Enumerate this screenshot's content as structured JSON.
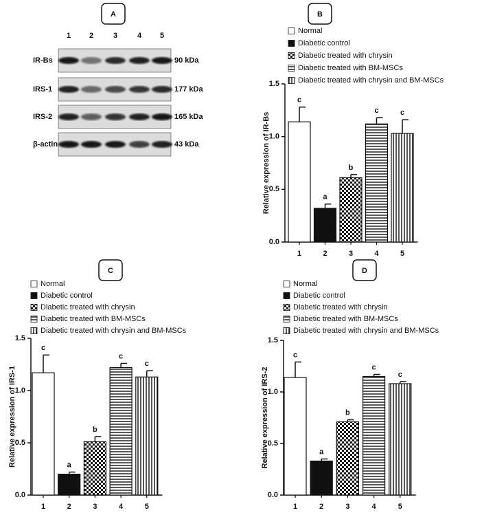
{
  "blot": {
    "panel": "A",
    "lanes": [
      "1",
      "2",
      "3",
      "4",
      "5"
    ],
    "rows": [
      {
        "name": "IR-Bs",
        "kda": "90 kDa"
      },
      {
        "name": "IRS-1",
        "kda": "177 kDa"
      },
      {
        "name": "IRS-2",
        "kda": "165 kDa"
      },
      {
        "name": "β-actin",
        "kda": "43 kDa"
      }
    ]
  },
  "chart_data": [
    {
      "type": "bar",
      "panel": "B",
      "y_label": "Relative expression of IR-Bs",
      "categories": [
        "1",
        "2",
        "3",
        "4",
        "5"
      ],
      "values": [
        1.14,
        0.32,
        0.61,
        1.12,
        1.03
      ],
      "errors": [
        0.14,
        0.04,
        0.03,
        0.06,
        0.13
      ],
      "annotations": [
        "c",
        "a",
        "b",
        "c",
        "c"
      ],
      "legend": [
        "Normal",
        "Diabetic control",
        "Diabetic treated with chrysin",
        "Diabetic treated with BM-MSCs",
        "Diabetic treated with chrysin and BM-MSCs"
      ],
      "patterns": [
        "white",
        "black",
        "checker",
        "hlines",
        "vlines"
      ],
      "ylim": [
        0,
        1.5
      ],
      "yticks": [
        {
          "value": 0,
          "label": "0.0"
        },
        0.5,
        {
          "value": 1,
          "label": "1.0"
        },
        1.5
      ]
    },
    {
      "type": "bar",
      "panel": "C",
      "y_label": "Relative expression of IRS-1",
      "categories": [
        "1",
        "2",
        "3",
        "4",
        "5"
      ],
      "values": [
        1.17,
        0.2,
        0.51,
        1.22,
        1.13
      ],
      "errors": [
        0.17,
        0.02,
        0.05,
        0.04,
        0.06
      ],
      "annotations": [
        "c",
        "a",
        "b",
        "c",
        "c"
      ],
      "legend": [
        "Normal",
        "Diabetic control",
        "Diabetic treated with chrysin",
        "Diabetic treated with BM-MSCs",
        "Diabetic treated with chrysin and BM-MSCs"
      ],
      "patterns": [
        "white",
        "black",
        "checker",
        "hlines",
        "vlines"
      ],
      "ylim": [
        0,
        1.5
      ],
      "yticks": [
        {
          "value": 0,
          "label": "0.0"
        },
        0.5,
        {
          "value": 1,
          "label": "1.0"
        },
        1.5
      ]
    },
    {
      "type": "bar",
      "panel": "D",
      "y_label": "Relative expression of IRS-2",
      "categories": [
        "1",
        "2",
        "3",
        "4",
        "5"
      ],
      "values": [
        1.14,
        0.33,
        0.71,
        1.15,
        1.08
      ],
      "errors": [
        0.15,
        0.02,
        0.02,
        0.02,
        0.02
      ],
      "annotations": [
        "c",
        "a",
        "b",
        "c",
        "c"
      ],
      "legend": [
        "Normal",
        "Diabetic control",
        "Diabetic treated with chrysin",
        "Diabetic treated with BM-MSCs",
        "Diabetic treated with chrysin and BM-MSCs"
      ],
      "patterns": [
        "white",
        "black",
        "checker",
        "hlines",
        "vlines"
      ],
      "ylim": [
        0,
        1.5
      ],
      "yticks": [
        {
          "value": 0,
          "label": "0.0"
        },
        0.5,
        {
          "value": 1,
          "label": "1.0"
        },
        1.5
      ]
    }
  ]
}
